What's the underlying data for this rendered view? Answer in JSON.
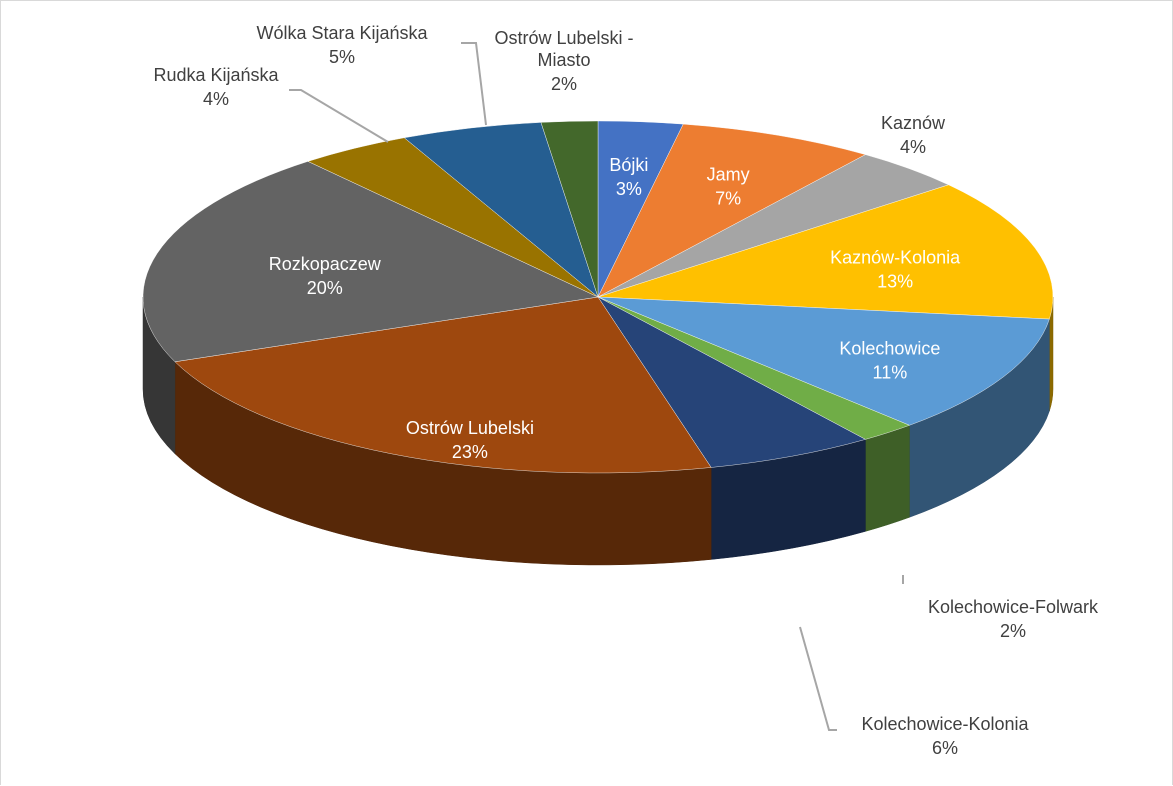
{
  "chart_data": {
    "type": "pie",
    "title": "",
    "slices": [
      {
        "label": "Bójki",
        "value": 3,
        "pct_text": "3%",
        "color": "#4472C4"
      },
      {
        "label": "Jamy",
        "value": 7,
        "pct_text": "7%",
        "color": "#ED7D31"
      },
      {
        "label": "Kaznów",
        "value": 4,
        "pct_text": "4%",
        "color": "#A5A5A5"
      },
      {
        "label": "Kaznów-Kolonia",
        "value": 13,
        "pct_text": "13%",
        "color": "#FFC000"
      },
      {
        "label": "Kolechowice",
        "value": 11,
        "pct_text": "11%",
        "color": "#5B9BD5"
      },
      {
        "label": "Kolechowice-Folwark",
        "value": 2,
        "pct_text": "2%",
        "color": "#70AD47"
      },
      {
        "label": "Kolechowice-Kolonia",
        "value": 6,
        "pct_text": "6%",
        "color": "#264478"
      },
      {
        "label": "Ostrów Lubelski",
        "value": 23,
        "pct_text": "23%",
        "color": "#9E480E"
      },
      {
        "label": "Rozkopaczew",
        "value": 20,
        "pct_text": "20%",
        "color": "#636363"
      },
      {
        "label": "Rudka Kijańska",
        "value": 4,
        "pct_text": "4%",
        "color": "#997300"
      },
      {
        "label": "Wólka Stara Kijańska",
        "value": 5,
        "pct_text": "5%",
        "color": "#255E91"
      },
      {
        "label": "Ostrów Lubelski - Miasto",
        "value": 2,
        "pct_text": "2%",
        "color": "#43682B"
      }
    ],
    "legend": "none",
    "style": "3d"
  }
}
